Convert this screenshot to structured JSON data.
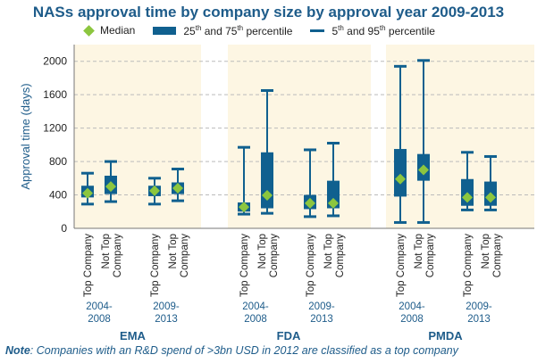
{
  "chart_data": {
    "type": "boxplot",
    "title": "NASs approval time by company size by approval year 2009-2013",
    "ylabel": "Approval time (days)",
    "ylim": [
      0,
      2200
    ],
    "yticks": [
      0,
      400,
      800,
      1200,
      1600,
      2000
    ],
    "grid": true,
    "legend": {
      "position": "top",
      "median": "Median",
      "box_pre": "25",
      "box_sup1": "th",
      "box_mid": " and 75",
      "box_sup2": "th",
      "box_post": " percentile",
      "whisker_pre": "5",
      "whisker_sup1": "th",
      "whisker_mid": " and 95",
      "whisker_sup2": "th",
      "whisker_post": " percentile"
    },
    "colors": {
      "box": "#10608f",
      "median": "#8cc63f",
      "band": "#fdf6e3",
      "grid": "#bbbbbb",
      "text": "#1e5c8a"
    },
    "agencies": [
      {
        "name": "EMA",
        "periods": [
          {
            "label": "2004-\n2008",
            "boxes": [
              {
                "category": "Top Company",
                "p5": 290,
                "q1": 370,
                "median": 420,
                "q3": 510,
                "p95": 660
              },
              {
                "category": "Not Top\nCompany",
                "p5": 320,
                "q1": 410,
                "median": 500,
                "q3": 630,
                "p95": 800
              }
            ]
          },
          {
            "label": "2009-\n2013",
            "boxes": [
              {
                "category": "Top Company",
                "p5": 290,
                "q1": 385,
                "median": 450,
                "q3": 510,
                "p95": 600
              },
              {
                "category": "Not Top\nCompany",
                "p5": 330,
                "q1": 410,
                "median": 480,
                "q3": 550,
                "p95": 710
              }
            ]
          }
        ]
      },
      {
        "name": "FDA",
        "periods": [
          {
            "label": "2004-\n2008",
            "boxes": [
              {
                "category": "Top Company",
                "p5": 170,
                "q1": 200,
                "median": 255,
                "q3": 310,
                "p95": 970
              },
              {
                "category": "Not Top\nCompany",
                "p5": 180,
                "q1": 240,
                "median": 395,
                "q3": 910,
                "p95": 1650
              }
            ]
          },
          {
            "label": "2009-\n2013",
            "boxes": [
              {
                "category": "Top Company",
                "p5": 140,
                "q1": 230,
                "median": 300,
                "q3": 400,
                "p95": 940
              },
              {
                "category": "Not Top\nCompany",
                "p5": 150,
                "q1": 240,
                "median": 300,
                "q3": 570,
                "p95": 1020
              }
            ]
          }
        ]
      },
      {
        "name": "PMDA",
        "periods": [
          {
            "label": "2004-\n2008",
            "boxes": [
              {
                "category": "Top Company",
                "p5": 70,
                "q1": 380,
                "median": 590,
                "q3": 950,
                "p95": 1940
              },
              {
                "category": "Not Top\nCompany",
                "p5": 70,
                "q1": 570,
                "median": 700,
                "q3": 890,
                "p95": 2010
              }
            ]
          },
          {
            "label": "2009-\n2013",
            "boxes": [
              {
                "category": "Top Company",
                "p5": 220,
                "q1": 270,
                "median": 370,
                "q3": 590,
                "p95": 910
              },
              {
                "category": "Not Top\nCompany",
                "p5": 220,
                "q1": 270,
                "median": 370,
                "q3": 560,
                "p95": 860
              }
            ]
          }
        ]
      }
    ]
  },
  "note": {
    "label": "Note",
    "text": ": Companies with an R&D spend of >3bn USD in 2012 are classified as a top company"
  }
}
